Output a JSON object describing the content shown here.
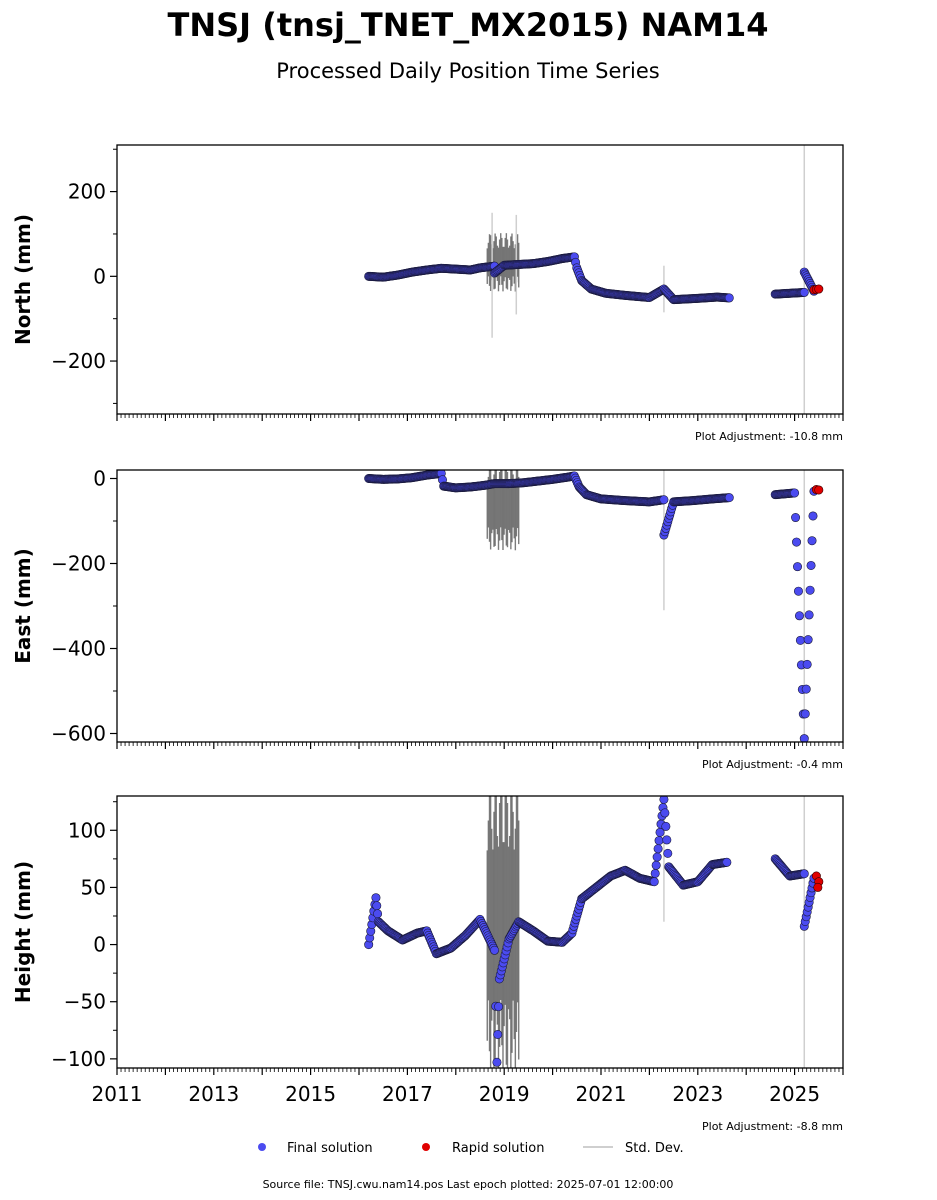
{
  "figure": {
    "title": "TNSJ (tnsj_TNET_MX2015) NAM14",
    "subtitle": "Processed Daily Position Time Series",
    "source_note": "Source file: TNSJ.cwu.nam14.pos  Last epoch plotted: 2025-07-01 12:00:00"
  },
  "legend": {
    "items": [
      {
        "label": "Final solution",
        "color": "#4b4bf0",
        "kind": "dot"
      },
      {
        "label": "Rapid solution",
        "color": "#e00000",
        "kind": "dot"
      },
      {
        "label": "Std. Dev.",
        "color": "#cfcfcf",
        "kind": "line"
      }
    ]
  },
  "colors": {
    "final": "#4b4bf0",
    "rapid": "#e00000",
    "stddev": "#cfcfcf",
    "stddev_dense": "#5a5a5a",
    "marker_edge": "#1a1a3a"
  },
  "chart_data": [
    {
      "type": "scatter",
      "ylabel": "North (mm)",
      "adjustment": "Plot Adjustment: -10.8 mm",
      "xlim": [
        2011,
        2026
      ],
      "ylim": [
        -325,
        310
      ],
      "yticks": [
        200,
        0,
        -200
      ],
      "ytick_labels": [
        "200",
        "0",
        "−200"
      ],
      "final": [
        [
          2016.2,
          0
        ],
        [
          2016.5,
          -2
        ],
        [
          2016.8,
          3
        ],
        [
          2017.1,
          10
        ],
        [
          2017.4,
          15
        ],
        [
          2017.7,
          19
        ],
        [
          2018.0,
          17
        ],
        [
          2018.3,
          15
        ],
        [
          2018.5,
          20
        ],
        [
          2018.8,
          24
        ],
        [
          2019.0,
          26
        ],
        [
          2019.3,
          28
        ],
        [
          2019.6,
          30
        ],
        [
          2019.9,
          35
        ],
        [
          2020.2,
          42
        ],
        [
          2020.45,
          46
        ],
        [
          2020.5,
          20
        ],
        [
          2020.6,
          -10
        ],
        [
          2020.8,
          -30
        ],
        [
          2021.1,
          -40
        ],
        [
          2021.5,
          -45
        ],
        [
          2022.0,
          -50
        ],
        [
          2022.5,
          -55
        ],
        [
          2023.0,
          -52
        ],
        [
          2023.4,
          -49
        ],
        [
          2023.65,
          -51
        ],
        [
          2024.6,
          -42
        ],
        [
          2024.9,
          -40
        ],
        [
          2025.2,
          -38
        ],
        [
          2025.4,
          -35
        ],
        [
          2018.8,
          8
        ],
        [
          2022.3,
          -30
        ],
        [
          2025.2,
          10
        ]
      ],
      "rapid": [
        [
          2025.4,
          -32
        ],
        [
          2025.45,
          -31
        ],
        [
          2025.5,
          -30
        ]
      ],
      "stddev_spikes": [
        [
          2018.75,
          -145,
          150
        ],
        [
          2019.25,
          -90,
          145
        ],
        [
          2022.3,
          -85,
          25
        ],
        [
          2025.2,
          -325,
          310
        ]
      ],
      "dense_band": [
        2018.65,
        2019.3,
        -30,
        90
      ]
    },
    {
      "type": "scatter",
      "ylabel": "East (mm)",
      "adjustment": "Plot Adjustment: -0.4 mm",
      "xlim": [
        2011,
        2026
      ],
      "ylim": [
        -620,
        20
      ],
      "yticks": [
        0,
        -200,
        -400,
        -600
      ],
      "ytick_labels": [
        "0",
        "−200",
        "−400",
        "−600"
      ],
      "final": [
        [
          2016.2,
          0
        ],
        [
          2016.5,
          -2
        ],
        [
          2016.8,
          -1
        ],
        [
          2017.1,
          2
        ],
        [
          2017.4,
          8
        ],
        [
          2017.7,
          12
        ],
        [
          2017.75,
          -18
        ],
        [
          2018.0,
          -22
        ],
        [
          2018.3,
          -20
        ],
        [
          2018.6,
          -16
        ],
        [
          2018.8,
          -12
        ],
        [
          2019.1,
          -12
        ],
        [
          2019.4,
          -10
        ],
        [
          2019.7,
          -6
        ],
        [
          2020.0,
          -2
        ],
        [
          2020.3,
          3
        ],
        [
          2020.45,
          6
        ],
        [
          2020.55,
          -20
        ],
        [
          2020.7,
          -38
        ],
        [
          2021.0,
          -48
        ],
        [
          2021.5,
          -52
        ],
        [
          2022.0,
          -55
        ],
        [
          2022.3,
          -50
        ],
        [
          2022.5,
          -55
        ],
        [
          2022.9,
          -52
        ],
        [
          2023.3,
          -48
        ],
        [
          2023.65,
          -45
        ],
        [
          2024.6,
          -38
        ],
        [
          2025.0,
          -34
        ],
        [
          2025.4,
          -30
        ],
        [
          2022.3,
          -133
        ],
        [
          2025.2,
          -612
        ]
      ],
      "rapid": [
        [
          2025.45,
          -26
        ],
        [
          2025.5,
          -27
        ]
      ],
      "stddev_spikes": [
        [
          2022.3,
          -310,
          40
        ],
        [
          2025.2,
          -620,
          20
        ]
      ],
      "dense_band": [
        2018.65,
        2019.3,
        -160,
        20
      ]
    },
    {
      "type": "scatter",
      "ylabel": "Height (mm)",
      "adjustment": "Plot Adjustment: -8.8 mm",
      "xlim": [
        2011,
        2026
      ],
      "ylim": [
        -108,
        130
      ],
      "yticks": [
        100,
        50,
        0,
        -50,
        -100
      ],
      "ytick_labels": [
        "100",
        "50",
        "0",
        "−50",
        "−100"
      ],
      "final": [
        [
          2016.2,
          0
        ],
        [
          2016.4,
          20
        ],
        [
          2016.6,
          12
        ],
        [
          2016.9,
          4
        ],
        [
          2017.2,
          10
        ],
        [
          2017.4,
          12
        ],
        [
          2017.6,
          -8
        ],
        [
          2017.9,
          -3
        ],
        [
          2018.2,
          8
        ],
        [
          2018.5,
          22
        ],
        [
          2018.8,
          -5
        ],
        [
          2018.9,
          -30
        ],
        [
          2019.1,
          5
        ],
        [
          2019.3,
          20
        ],
        [
          2019.6,
          12
        ],
        [
          2019.9,
          3
        ],
        [
          2020.2,
          2
        ],
        [
          2020.4,
          10
        ],
        [
          2020.6,
          40
        ],
        [
          2020.9,
          50
        ],
        [
          2021.2,
          60
        ],
        [
          2021.5,
          65
        ],
        [
          2021.8,
          58
        ],
        [
          2022.1,
          55
        ],
        [
          2022.4,
          68
        ],
        [
          2022.7,
          52
        ],
        [
          2023.0,
          55
        ],
        [
          2023.3,
          70
        ],
        [
          2023.6,
          72
        ],
        [
          2024.6,
          75
        ],
        [
          2024.9,
          60
        ],
        [
          2025.2,
          62
        ],
        [
          2025.4,
          58
        ],
        [
          2016.35,
          41
        ],
        [
          2022.3,
          127
        ],
        [
          2025.2,
          16
        ],
        [
          2018.85,
          -103
        ]
      ],
      "rapid": [
        [
          2025.45,
          60
        ],
        [
          2025.5,
          55
        ],
        [
          2025.48,
          50
        ]
      ],
      "stddev_spikes": [
        [
          2022.3,
          20,
          130
        ],
        [
          2025.2,
          -108,
          130
        ]
      ],
      "dense_band": [
        2018.65,
        2019.3,
        -108,
        130
      ]
    }
  ],
  "xaxis": {
    "tick_labels": [
      "2011",
      "2013",
      "2015",
      "2017",
      "2019",
      "2021",
      "2023",
      "2025"
    ],
    "tick_values": [
      2011,
      2013,
      2015,
      2017,
      2019,
      2021,
      2023,
      2025
    ]
  }
}
